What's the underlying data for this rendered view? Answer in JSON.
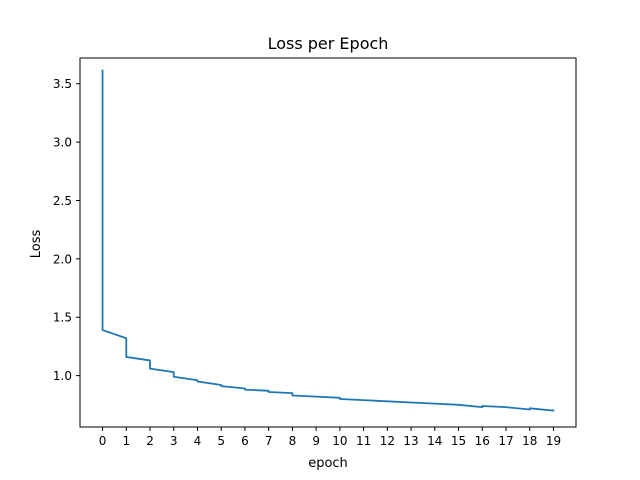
{
  "chart_data": {
    "type": "line",
    "title": "Loss per Epoch",
    "xlabel": "epoch",
    "ylabel": "Loss",
    "xlim": [
      -0.95,
      19.95
    ],
    "ylim": [
      0.56,
      3.72
    ],
    "xticks": [
      0,
      1,
      2,
      3,
      4,
      5,
      6,
      7,
      8,
      9,
      10,
      11,
      12,
      13,
      14,
      15,
      16,
      17,
      18,
      19
    ],
    "xtick_labels": [
      "0",
      "1",
      "2",
      "3",
      "4",
      "5",
      "6",
      "7",
      "8",
      "9",
      "10",
      "11",
      "12",
      "13",
      "14",
      "15",
      "16",
      "17",
      "18",
      "19"
    ],
    "yticks": [
      1.0,
      1.5,
      2.0,
      2.5,
      3.0,
      3.5
    ],
    "ytick_labels": [
      "1.0",
      "1.5",
      "2.0",
      "2.5",
      "3.0",
      "3.5"
    ],
    "grid": false,
    "series": [
      {
        "color": "#1f77b4",
        "x": [
          0,
          0,
          1,
          1,
          2,
          2,
          3,
          3,
          4,
          4,
          5,
          5,
          6,
          6,
          7,
          7,
          8,
          8,
          9,
          9,
          10,
          10,
          11,
          11,
          12,
          12,
          13,
          13,
          14,
          14,
          15,
          15,
          16,
          16,
          17,
          17,
          18,
          18,
          19,
          19
        ],
        "y": [
          3.62,
          1.39,
          1.32,
          1.16,
          1.13,
          1.06,
          1.03,
          0.99,
          0.96,
          0.95,
          0.92,
          0.91,
          0.89,
          0.88,
          0.87,
          0.86,
          0.85,
          0.83,
          0.82,
          0.82,
          0.81,
          0.8,
          0.79,
          0.79,
          0.78,
          0.78,
          0.77,
          0.77,
          0.76,
          0.76,
          0.75,
          0.75,
          0.73,
          0.74,
          0.73,
          0.73,
          0.71,
          0.72,
          0.7,
          0.71
        ]
      }
    ]
  }
}
